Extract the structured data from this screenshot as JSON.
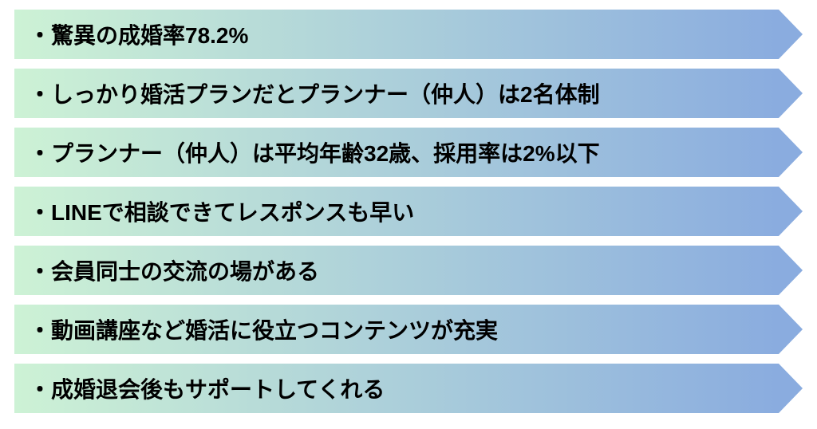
{
  "infographic": {
    "type": "arrow-list",
    "layout": {
      "container_width": 1024,
      "container_height": 538,
      "item_height": 62,
      "item_gap": 12,
      "arrow_body_width": 958,
      "arrow_head_width": 30,
      "padding_left": 18,
      "outer_padding_x": 18,
      "outer_padding_y": 12
    },
    "gradient": {
      "start_color": "#cdf2d5",
      "end_color": "#8aacdf",
      "direction": "90deg"
    },
    "arrow_head_color": "#8aacdf",
    "text_style": {
      "color": "#000000",
      "font_size_pt": 21,
      "font_weight": 700,
      "font_family": "Hiragino Kaku Gothic ProN"
    },
    "bullet_prefix": "・",
    "items": [
      {
        "text": "・驚異の成婚率78.2%"
      },
      {
        "text": "・しっかり婚活プランだとプランナー（仲人）は2名体制"
      },
      {
        "text": "・プランナー（仲人）は平均年齢32歳、採用率は2%以下"
      },
      {
        "text": "・LINEで相談できてレスポンスも早い"
      },
      {
        "text": "・会員同士の交流の場がある"
      },
      {
        "text": "・動画講座など婚活に役立つコンテンツが充実"
      },
      {
        "text": "・成婚退会後もサポートしてくれる"
      }
    ]
  }
}
